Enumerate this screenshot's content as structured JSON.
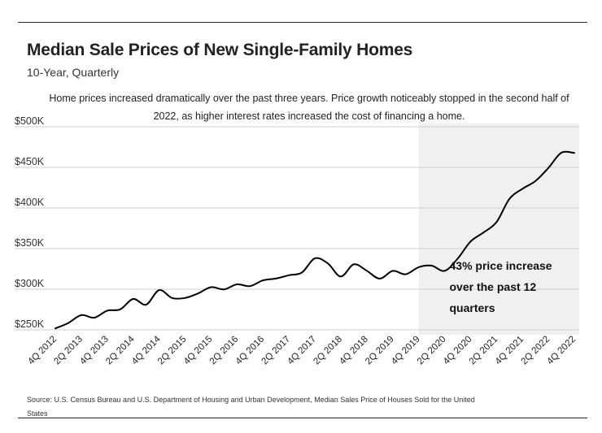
{
  "header": {
    "title": "Median Sale Prices of New Single-Family Homes",
    "subtitle": "10-Year, Quarterly",
    "description": "Home prices increased dramatically over the past three years. Price growth noticeably stopped in the second half of 2022, as higher interest rates increased the cost of financing a home."
  },
  "footer": {
    "source": "Source:  U.S. Census Bureau and U.S. Department of Housing and Urban Development, Median Sales Price of Houses Sold for the United States"
  },
  "chart_data": {
    "type": "line",
    "title": "Median Sale Prices of New Single-Family Homes",
    "subtitle": "10-Year, Quarterly",
    "xlabel": "",
    "ylabel": "",
    "ylim": [
      250000,
      500000
    ],
    "yticks": [
      250000,
      300000,
      350000,
      400000,
      450000,
      500000
    ],
    "ytick_labels": [
      "$250K",
      "$300K",
      "$350K",
      "$400K",
      "$450K",
      "$500K"
    ],
    "grid": true,
    "line_color": "#000000",
    "shade_color": "#f0f0f0",
    "x_tick_labels": [
      "4Q 2012",
      "2Q 2013",
      "4Q 2013",
      "2Q 2014",
      "4Q 2014",
      "2Q 2015",
      "4Q 2015",
      "2Q 2016",
      "4Q 2016",
      "2Q 2017",
      "4Q 2017",
      "2Q 2018",
      "4Q 2018",
      "2Q 2019",
      "4Q 2019",
      "2Q 2020",
      "4Q 2020",
      "2Q 2021",
      "4Q 2021",
      "2Q 2022",
      "4Q 2022"
    ],
    "shaded_region": {
      "from": "4Q 2019",
      "to": "4Q 2022"
    },
    "annotation": {
      "lines": [
        "43% price increase",
        "over the past 12",
        "quarters"
      ],
      "anchor": "2Q 2020"
    },
    "series": [
      {
        "x": [
          "4Q 2012",
          "1Q 2013",
          "2Q 2013",
          "3Q 2013",
          "4Q 2013",
          "1Q 2014",
          "2Q 2014",
          "3Q 2014",
          "4Q 2014",
          "1Q 2015",
          "2Q 2015",
          "3Q 2015",
          "4Q 2015",
          "1Q 2016",
          "2Q 2016",
          "3Q 2016",
          "4Q 2016",
          "1Q 2017",
          "2Q 2017",
          "3Q 2017",
          "4Q 2017",
          "1Q 2018",
          "2Q 2018",
          "3Q 2018",
          "4Q 2018",
          "1Q 2019",
          "2Q 2019",
          "3Q 2019",
          "4Q 2019",
          "1Q 2020",
          "2Q 2020",
          "3Q 2020",
          "4Q 2020",
          "1Q 2021",
          "2Q 2021",
          "3Q 2021",
          "4Q 2021",
          "1Q 2022",
          "2Q 2022",
          "3Q 2022",
          "4Q 2022"
        ],
        "values": [
          251700,
          258400,
          268100,
          264900,
          273600,
          275200,
          288000,
          281000,
          298900,
          289200,
          289200,
          294800,
          302500,
          299800,
          306000,
          303800,
          310900,
          313100,
          317200,
          320500,
          337900,
          331800,
          315600,
          330600,
          322800,
          313000,
          322500,
          318400,
          327100,
          329000,
          322600,
          337500,
          358700,
          369800,
          382600,
          411200,
          423600,
          433100,
          449300,
          468000,
          467700
        ]
      }
    ]
  }
}
